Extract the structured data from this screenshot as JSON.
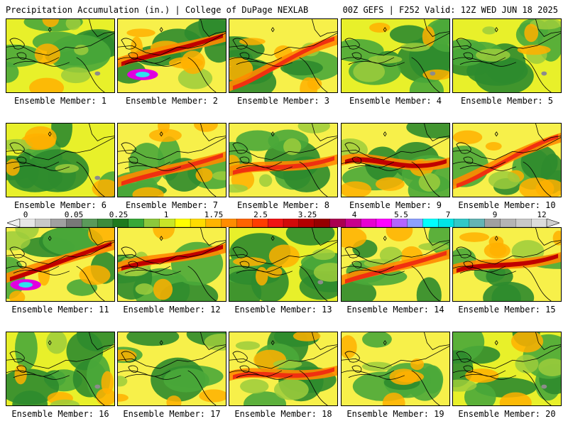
{
  "header": {
    "left_title": "Precipitation Accumulation (in.) | College of DuPage NEXLAB",
    "right_title": "00Z GEFS | F252 Valid: 12Z WED JUN 18 2025"
  },
  "member_label_prefix": "Ensemble Member: ",
  "members": [
    {
      "number": "1",
      "max_level": 3,
      "heavy_band": false,
      "extreme": false
    },
    {
      "number": "2",
      "max_level": 9,
      "heavy_band": true,
      "extreme": true
    },
    {
      "number": "3",
      "max_level": 6,
      "heavy_band": true,
      "extreme": false
    },
    {
      "number": "4",
      "max_level": 3,
      "heavy_band": false,
      "extreme": false
    },
    {
      "number": "5",
      "max_level": 3,
      "heavy_band": false,
      "extreme": false
    },
    {
      "number": "6",
      "max_level": 3,
      "heavy_band": false,
      "extreme": false
    },
    {
      "number": "7",
      "max_level": 5,
      "heavy_band": true,
      "extreme": false
    },
    {
      "number": "8",
      "max_level": 5,
      "heavy_band": true,
      "extreme": false
    },
    {
      "number": "9",
      "max_level": 7,
      "heavy_band": true,
      "extreme": false
    },
    {
      "number": "10",
      "max_level": 5,
      "heavy_band": true,
      "extreme": false
    },
    {
      "number": "11",
      "max_level": 9,
      "heavy_band": true,
      "extreme": true
    },
    {
      "number": "12",
      "max_level": 7,
      "heavy_band": true,
      "extreme": false
    },
    {
      "number": "13",
      "max_level": 3,
      "heavy_band": false,
      "extreme": false
    },
    {
      "number": "14",
      "max_level": 5,
      "heavy_band": true,
      "extreme": false
    },
    {
      "number": "15",
      "max_level": 8,
      "heavy_band": true,
      "extreme": false
    },
    {
      "number": "16",
      "max_level": 3,
      "heavy_band": false,
      "extreme": false
    },
    {
      "number": "17",
      "max_level": 4,
      "heavy_band": false,
      "extreme": false
    },
    {
      "number": "18",
      "max_level": 6,
      "heavy_band": true,
      "extreme": false
    },
    {
      "number": "19",
      "max_level": 4,
      "heavy_band": false,
      "extreme": false
    },
    {
      "number": "20",
      "max_level": 3,
      "heavy_band": false,
      "extreme": false
    }
  ],
  "colorbar": {
    "tick_labels": [
      "0",
      "0.05",
      "0.25",
      "1",
      "1.75",
      "2.5",
      "3.25",
      "4",
      "5.5",
      "7",
      "9",
      "12"
    ],
    "colors": [
      "#e6e6e6",
      "#c8c8c8",
      "#a0a0a0",
      "#787878",
      "#5a9a5a",
      "#3c8c3c",
      "#1e7a1e",
      "#38a838",
      "#8cc83c",
      "#c8e628",
      "#ffff00",
      "#ffdc00",
      "#ffb400",
      "#ff8c00",
      "#ff6400",
      "#ff3c00",
      "#f01414",
      "#d20a0a",
      "#b40000",
      "#960000",
      "#aa0050",
      "#c8008c",
      "#e600d2",
      "#ff00ff",
      "#b464ff",
      "#8ca0ff",
      "#00ffff",
      "#00e6e6",
      "#32c8c8",
      "#64b4b4",
      "#a0a0a0",
      "#b4b4b4",
      "#c8c8c8",
      "#dcdcdc"
    ]
  }
}
